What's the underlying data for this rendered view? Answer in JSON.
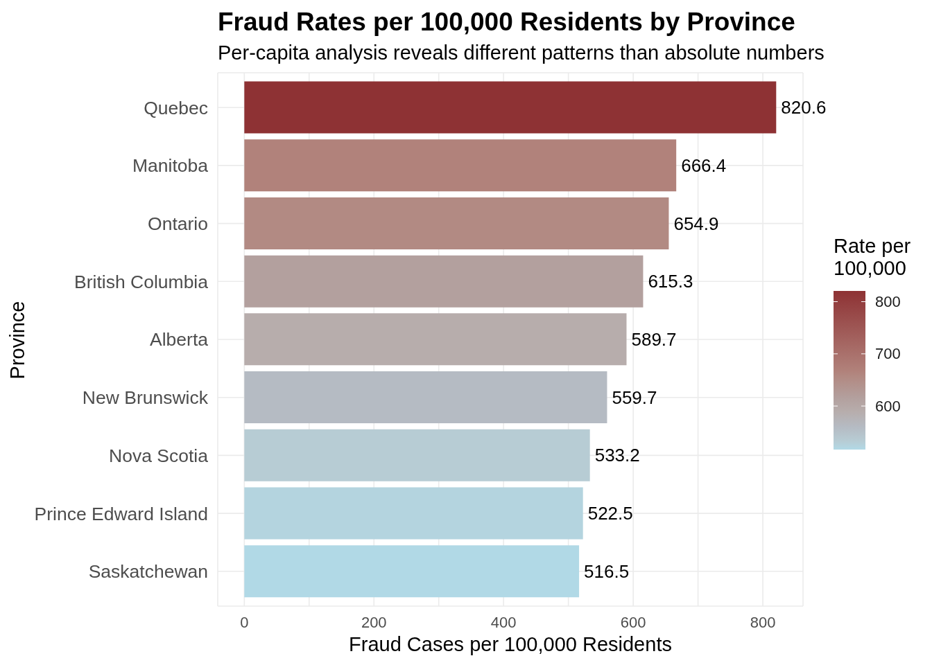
{
  "chart_data": {
    "type": "bar",
    "orientation": "horizontal",
    "title": "Fraud Rates per 100,000 Residents by Province",
    "subtitle": "Per-capita analysis reveals different patterns than absolute numbers",
    "xlabel": "Fraud Cases per 100,000 Residents",
    "ylabel": "Province",
    "clabel": "Rate per 100,000",
    "categories": [
      "Quebec",
      "Manitoba",
      "Ontario",
      "British Columbia",
      "Alberta",
      "New Brunswick",
      "Nova Scotia",
      "Prince Edward Island",
      "Saskatchewan"
    ],
    "values": [
      820.6,
      666.4,
      654.9,
      615.3,
      589.7,
      559.7,
      533.2,
      522.5,
      516.5
    ],
    "colors": [
      "#8e3234",
      "#b1827b",
      "#b28a83",
      "#b3a09e",
      "#b7adac",
      "#b5bbc3",
      "#b7ccd4",
      "#b4d4df",
      "#b1d9e6"
    ],
    "xlim": [
      -41,
      862
    ],
    "xticks": [
      0,
      {
        "value": 100,
        "label": null
      },
      200,
      {
        "value": 300,
        "label": null
      },
      400,
      {
        "value": 500,
        "label": null
      },
      600,
      {
        "value": 700,
        "label": null
      },
      800
    ],
    "clim": [
      516.5,
      820.6
    ],
    "cticks": [
      600,
      700,
      800
    ],
    "data_labels": true,
    "grid": true
  }
}
